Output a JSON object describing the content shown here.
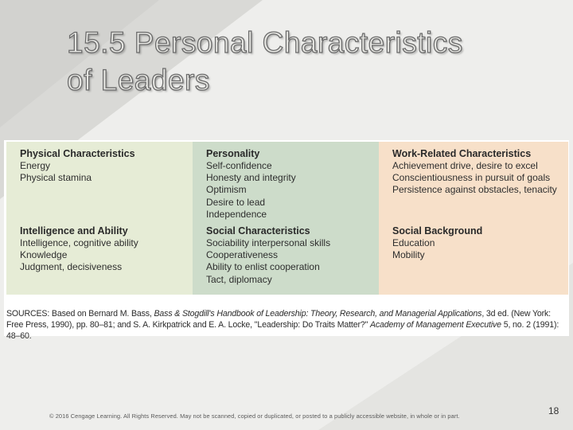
{
  "slide": {
    "title_line1": "15.5 Personal Characteristics",
    "title_line2": "of Leaders",
    "page_number": "18",
    "copyright": "© 2016 Cengage Learning. All Rights Reserved. May not be scanned, copied or duplicated, or posted to a publicly accessible website, in whole or in part."
  },
  "colors": {
    "background": "#eeeeec",
    "column_1": "#e6ecd6",
    "column_2": "#cddcca",
    "column_3": "#f7e0c9"
  },
  "table": {
    "columns": [
      {
        "sections": [
          {
            "heading": "Physical Characteristics",
            "items": [
              "Energy",
              "Physical stamina"
            ]
          },
          {
            "heading": "Intelligence and Ability",
            "items": [
              "Intelligence, cognitive ability",
              "Knowledge",
              "Judgment, decisiveness"
            ]
          }
        ]
      },
      {
        "sections": [
          {
            "heading": "Personality",
            "items": [
              "Self-confidence",
              "Honesty and integrity",
              "Optimism",
              "Desire to lead",
              "Independence"
            ]
          },
          {
            "heading": "Social Characteristics",
            "items": [
              "Sociability interpersonal skills",
              "Cooperativeness",
              "Ability to enlist cooperation",
              "Tact, diplomacy"
            ]
          }
        ]
      },
      {
        "sections": [
          {
            "heading": "Work-Related Characteristics",
            "items": [
              "Achievement drive, desire to excel",
              "Conscientiousness in pursuit of goals",
              "Persistence against obstacles, tenacity"
            ]
          },
          {
            "heading": "Social Background",
            "items": [
              "Education",
              "Mobility"
            ]
          }
        ]
      }
    ],
    "sources": {
      "part1": "SOURCES: Based on Bernard M. Bass, ",
      "book": "Bass & Stogdill's Handbook of Leadership: Theory, Research, and Managerial Applications",
      "part2": ", 3d ed. (New York: Free Press, 1990), pp. 80–81; and S. A. Kirkpatrick and E. A. Locke, \"Leadership: Do Traits Matter?\" ",
      "journal": "Academy of Management Executive",
      "part3": " 5, no. 2 (1991): 48–60."
    }
  }
}
